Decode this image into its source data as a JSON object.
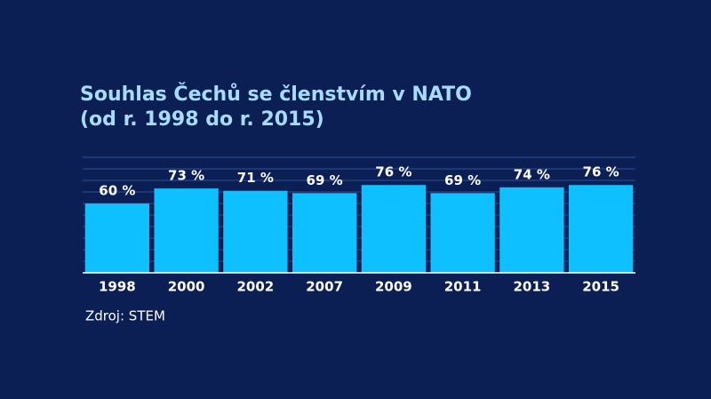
{
  "chart_data": {
    "type": "bar",
    "title": "Souhlas Čechů se členstvím v NATO",
    "subtitle": "(od r. 1998 do r. 2015)",
    "categories": [
      "1998",
      "2000",
      "2002",
      "2007",
      "2009",
      "2011",
      "2013",
      "2015"
    ],
    "values": [
      60,
      73,
      71,
      69,
      76,
      69,
      74,
      76
    ],
    "value_labels": [
      "60 %",
      "73 %",
      "71 %",
      "69 %",
      "76 %",
      "69 %",
      "74 %",
      "76 %"
    ],
    "color": "#0ec0ff",
    "ylim": [
      0,
      100
    ],
    "yticks": [
      0,
      10,
      20,
      30,
      40,
      50,
      60,
      70,
      80,
      90,
      100
    ],
    "grid": true,
    "source": "Zdroj: STEM"
  }
}
